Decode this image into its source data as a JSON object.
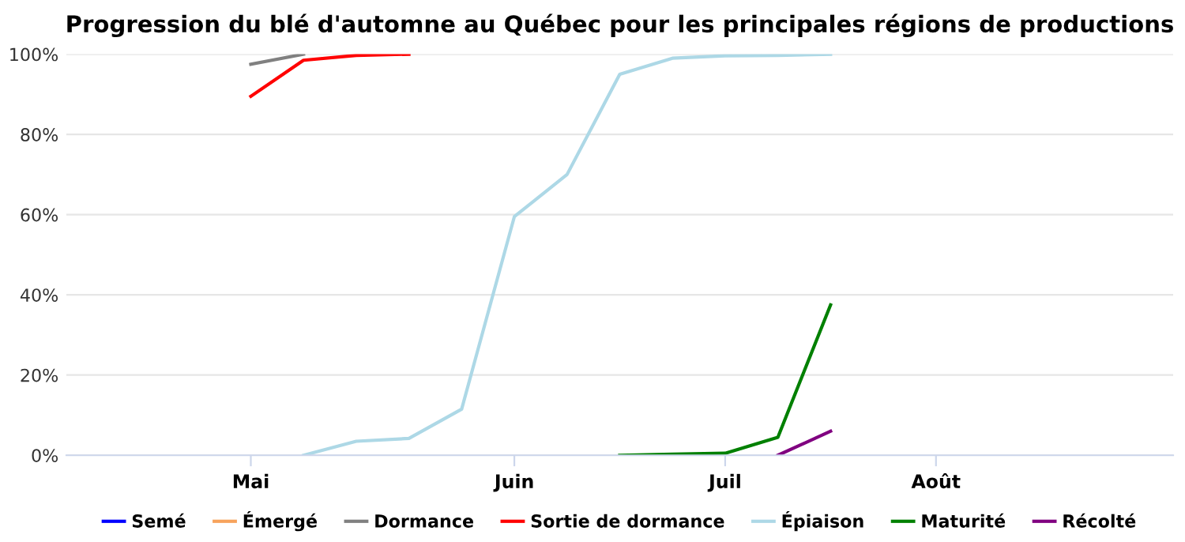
{
  "chart_data": {
    "type": "line",
    "title": "Progression du blé d'automne au Québec pour les principales régions de productions",
    "categories": [
      null,
      null,
      null,
      "Mai",
      null,
      null,
      null,
      null,
      "Juin",
      null,
      null,
      null,
      "Juil",
      null,
      null,
      null,
      "Août",
      null,
      null,
      null,
      null
    ],
    "series": [
      {
        "name": "Semé",
        "color": "#0000ff",
        "values": [
          null,
          null,
          null,
          null,
          null,
          null,
          null,
          null,
          null,
          null,
          null,
          null,
          null,
          null,
          null,
          null,
          null,
          null,
          null,
          null,
          null
        ]
      },
      {
        "name": "Émergé",
        "color": "#f7a35c",
        "values": [
          null,
          null,
          null,
          null,
          null,
          null,
          null,
          null,
          null,
          null,
          null,
          null,
          null,
          null,
          null,
          null,
          null,
          null,
          null,
          null,
          null
        ]
      },
      {
        "name": "Dormance",
        "color": "#808080",
        "values": [
          null,
          null,
          null,
          97.5,
          100,
          null,
          null,
          null,
          null,
          null,
          null,
          null,
          null,
          null,
          null,
          null,
          null,
          null,
          null,
          null,
          null
        ]
      },
      {
        "name": "Sortie de dormance",
        "color": "#ff0000",
        "values": [
          null,
          null,
          null,
          89.5,
          98.5,
          99.7,
          100,
          null,
          null,
          null,
          null,
          null,
          null,
          null,
          null,
          null,
          null,
          null,
          null,
          null,
          null
        ]
      },
      {
        "name": "Épiaison",
        "color": "#add8e6",
        "values": [
          null,
          null,
          null,
          null,
          0,
          3.5,
          4.2,
          11.5,
          59.5,
          70,
          95,
          99,
          99.6,
          99.7,
          100,
          null,
          null,
          null,
          null,
          null,
          null
        ]
      },
      {
        "name": "Maturité",
        "color": "#008000",
        "values": [
          null,
          null,
          null,
          null,
          null,
          null,
          null,
          null,
          null,
          null,
          0,
          0.3,
          0.5,
          4.5,
          37.5,
          null,
          null,
          null,
          null,
          null,
          null
        ]
      },
      {
        "name": "Récolté",
        "color": "#800080",
        "values": [
          null,
          null,
          null,
          null,
          null,
          null,
          null,
          null,
          null,
          null,
          null,
          null,
          null,
          0,
          6,
          null,
          null,
          null,
          null,
          null,
          null
        ]
      }
    ],
    "ylim": [
      0,
      100
    ],
    "yticks": [
      {
        "value": 0,
        "label": "0%"
      },
      {
        "value": 20,
        "label": "20%"
      },
      {
        "value": 40,
        "label": "40%"
      },
      {
        "value": 60,
        "label": "60%"
      },
      {
        "value": 80,
        "label": "80%"
      },
      {
        "value": 100,
        "label": "100%"
      }
    ],
    "grid": "y",
    "legend": "bottom",
    "marker": "none",
    "line_style": "solid"
  }
}
